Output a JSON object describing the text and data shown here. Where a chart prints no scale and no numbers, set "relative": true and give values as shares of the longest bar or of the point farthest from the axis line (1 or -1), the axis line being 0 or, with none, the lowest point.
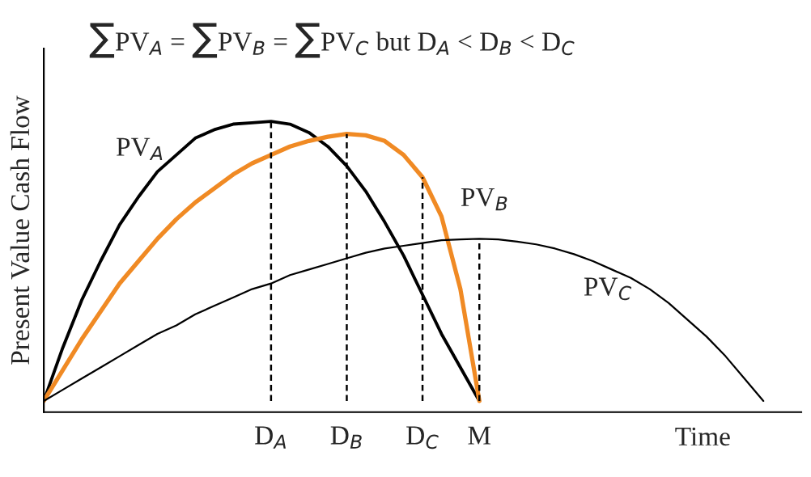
{
  "chart_data": {
    "type": "line",
    "relative": true,
    "title": "∑PV$_{A}$ = ∑PV$_{B}$ = ∑PV$_{C}$ but D$_{A}$ < D$_{B}$ < D$_{C}$",
    "ylabel": "Present Value Cash Flow",
    "xlabel": "Time",
    "categories": [
      null,
      null,
      null,
      null,
      null,
      null,
      null,
      null,
      null,
      null,
      null,
      null,
      "D$_{A}$",
      null,
      null,
      null,
      "D$_{B}$",
      null,
      null,
      null,
      "D$_{C}$",
      null,
      null,
      "M",
      null,
      null,
      null,
      null,
      null,
      null,
      null,
      null,
      null,
      null,
      null,
      null,
      null,
      null,
      null,
      null,
      null
    ],
    "series": [
      {
        "name": "PV$_{A}$",
        "color": "#000000",
        "values": [
          0,
          0.19,
          0.36,
          0.5,
          0.63,
          0.73,
          0.82,
          0.88,
          0.94,
          0.97,
          0.99,
          0.995,
          1.0,
          0.99,
          0.96,
          0.91,
          0.84,
          0.75,
          0.64,
          0.52,
          0.38,
          0.24,
          0.12,
          0,
          null,
          null,
          null,
          null,
          null,
          null,
          null,
          null,
          null,
          null,
          null,
          null,
          null,
          null,
          null,
          null,
          null
        ]
      },
      {
        "name": "PV$_{B}$",
        "color": "#f08a24",
        "values": [
          0,
          0.11,
          0.22,
          0.32,
          0.42,
          0.5,
          0.58,
          0.65,
          0.71,
          0.76,
          0.81,
          0.85,
          0.88,
          0.91,
          0.93,
          0.945,
          0.955,
          0.95,
          0.93,
          0.88,
          0.8,
          0.66,
          0.4,
          0,
          null,
          null,
          null,
          null,
          null,
          null,
          null,
          null,
          null,
          null,
          null,
          null,
          null,
          null,
          null,
          null,
          null
        ]
      },
      {
        "name": "PV$_{C}$",
        "color": "#000000",
        "values": [
          0,
          0.04,
          0.08,
          0.12,
          0.16,
          0.2,
          0.24,
          0.27,
          0.31,
          0.34,
          0.37,
          0.4,
          0.42,
          0.45,
          0.47,
          0.49,
          0.51,
          0.53,
          0.545,
          0.555,
          0.565,
          0.575,
          0.578,
          0.58,
          0.578,
          0.57,
          0.56,
          0.545,
          0.525,
          0.5,
          0.47,
          0.44,
          0.4,
          0.35,
          0.29,
          0.23,
          0.16,
          0.08,
          0,
          null,
          null
        ]
      }
    ],
    "ref_lines": [
      {
        "axis": "x",
        "value": "D$_{A}$",
        "line_style": "dashed",
        "color": "#000000"
      },
      {
        "axis": "x",
        "value": "D$_{B}$",
        "line_style": "dashed",
        "color": "#000000"
      },
      {
        "axis": "x",
        "value": "D$_{C}$",
        "line_style": "dashed",
        "color": "#000000"
      },
      {
        "axis": "x",
        "value": "M",
        "line_style": "dashed",
        "color": "#000000"
      }
    ],
    "legend": false,
    "grid": false
  }
}
